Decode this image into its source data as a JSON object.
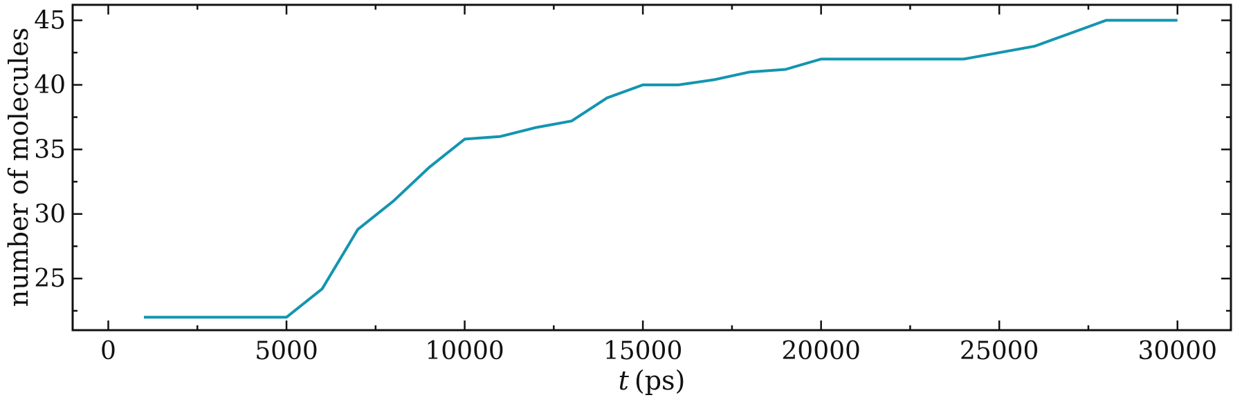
{
  "chart_data": {
    "type": "line",
    "xlabel": "(ps)",
    "xlabel_var": "t",
    "ylabel": "number of molecules",
    "xlim": [
      -1000,
      31500
    ],
    "ylim": [
      21.0,
      46.2
    ],
    "xticks": [
      0,
      5000,
      10000,
      15000,
      20000,
      25000,
      30000
    ],
    "xtick_labels": [
      "0",
      "5000",
      "10000",
      "15000",
      "20000",
      "25000",
      "30000"
    ],
    "xminor": [
      2500,
      7500,
      12500,
      17500,
      22500,
      27500
    ],
    "yticks": [
      25,
      30,
      35,
      40,
      45
    ],
    "ytick_labels": [
      "25",
      "30",
      "35",
      "40",
      "45"
    ],
    "yminor": [
      22.5,
      27.5,
      32.5,
      37.5,
      42.5
    ],
    "grid": false,
    "series": [
      {
        "color": "#1395b0",
        "x": [
          1000,
          2000,
          3000,
          4000,
          5000,
          6000,
          7000,
          8000,
          9000,
          10000,
          11000,
          12000,
          13000,
          14000,
          15000,
          16000,
          17000,
          18000,
          19000,
          20000,
          21000,
          22000,
          23000,
          24000,
          25000,
          26000,
          27000,
          28000,
          29000,
          30000
        ],
        "y": [
          22,
          22,
          22,
          22,
          22,
          24.2,
          28.8,
          31,
          33.6,
          35.8,
          36,
          36.7,
          37.2,
          39,
          40,
          40,
          40.4,
          41,
          41.2,
          42,
          42,
          42,
          42,
          42,
          42.5,
          43,
          44,
          45,
          45,
          45
        ]
      }
    ]
  }
}
